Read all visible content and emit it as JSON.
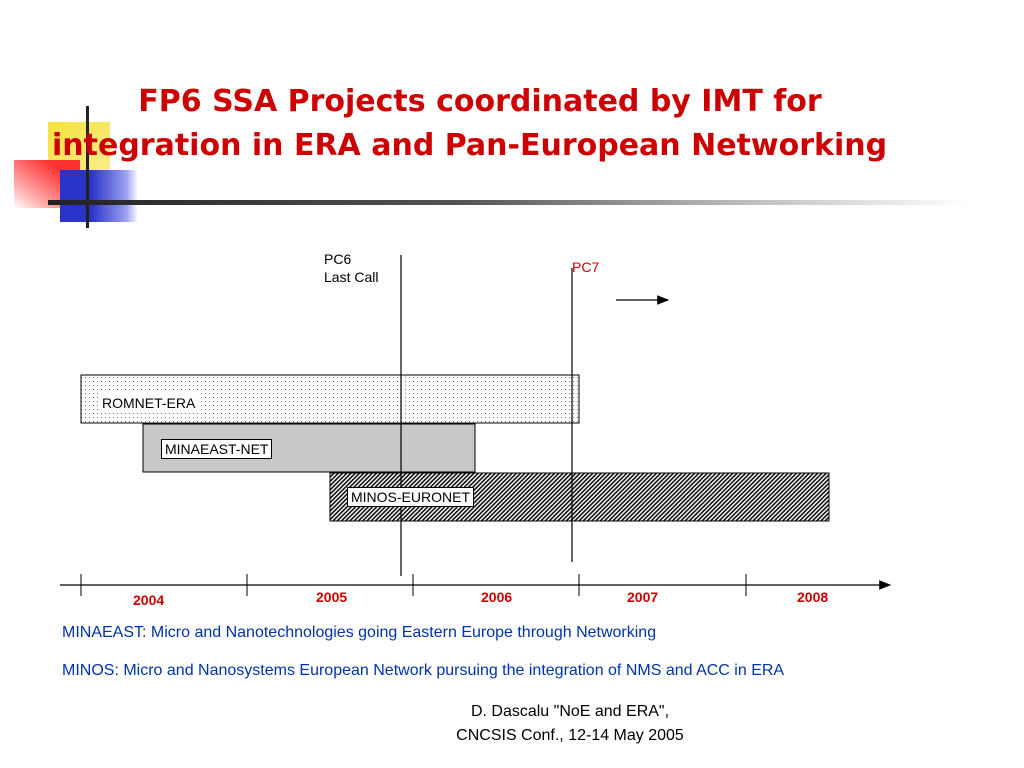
{
  "title": {
    "line1": "FP6 SSA Projects coordinated by IMT for",
    "line2": "integration in ERA and Pan-European Networking"
  },
  "calls": {
    "pc6": {
      "line1": "PC6",
      "line2": "Last Call"
    },
    "pc7": "PC7"
  },
  "projects": [
    {
      "name": "ROMNET-ERA",
      "pattern": "dotted"
    },
    {
      "name": "MINAEAST-NET",
      "pattern": "gray"
    },
    {
      "name": "MINOS-EURONET",
      "pattern": "hatched"
    }
  ],
  "years": [
    "2004",
    "2005",
    "2006",
    "2007",
    "2008"
  ],
  "definitions": [
    "MINAEAST: Micro and Nanotechnologies going Eastern Europe through Networking",
    "MINOS: Micro and Nanosystems European Network pursuing the integration of NMS and ACC in ERA"
  ],
  "footer": {
    "line1": "D. Dascalu \"NoE and ERA\",",
    "line2": "CNCSIS Conf., 12-14 May 2005"
  },
  "colors": {
    "title": "#cc0000",
    "years": "#cc0000",
    "definitions": "#0033aa",
    "minaeast_fill": "#c8c8c8"
  }
}
